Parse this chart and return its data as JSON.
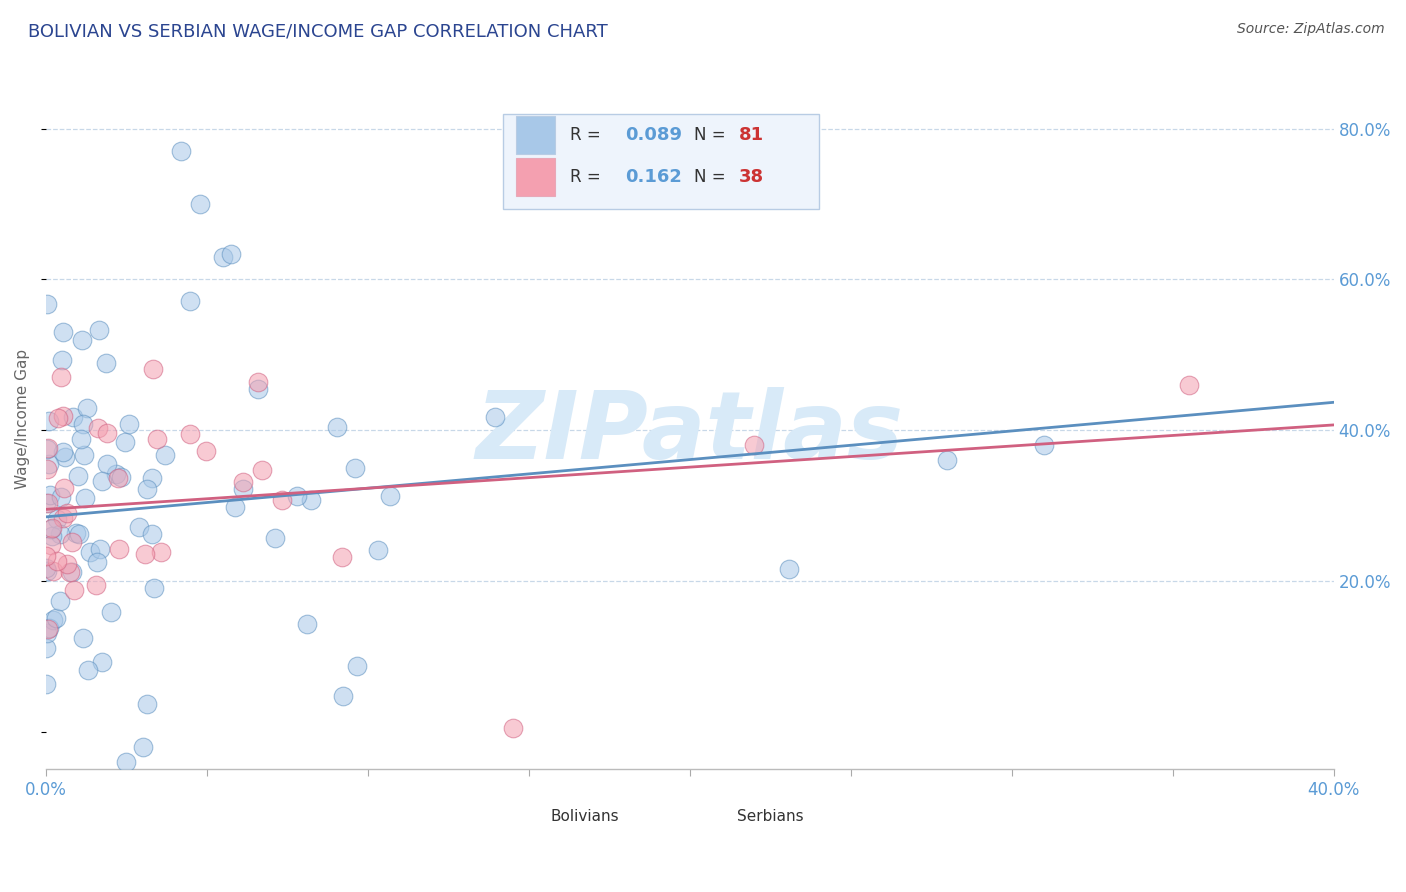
{
  "title": "BOLIVIAN VS SERBIAN WAGE/INCOME GAP CORRELATION CHART",
  "source": "Source: ZipAtlas.com",
  "ylabel": "Wage/Income Gap",
  "xlim": [
    0.0,
    0.4
  ],
  "ylim": [
    -0.05,
    0.88
  ],
  "yticks": [
    0.2,
    0.4,
    0.6,
    0.8
  ],
  "ytick_labels": [
    "20.0%",
    "40.0%",
    "60.0%",
    "80.0%"
  ],
  "xticks": [
    0.0,
    0.05,
    0.1,
    0.15,
    0.2,
    0.25,
    0.3,
    0.35,
    0.4
  ],
  "xtick_labels": [
    "0.0%",
    "",
    "",
    "",
    "",
    "",
    "",
    "",
    "40.0%"
  ],
  "bolivians_R": 0.089,
  "bolivians_N": 81,
  "serbians_R": 0.162,
  "serbians_N": 38,
  "blue_color": "#A8C8E8",
  "pink_color": "#F4A0B0",
  "blue_line_color": "#5B8FBF",
  "pink_line_color": "#D06080",
  "title_color": "#2B4590",
  "axis_tick_color": "#5B9BD5",
  "background_color": "#FFFFFF",
  "grid_color": "#C8D8E8",
  "watermark_color": "#D8EAF8",
  "legend_bg": "#EEF4FC",
  "legend_border": "#B8CCE4"
}
